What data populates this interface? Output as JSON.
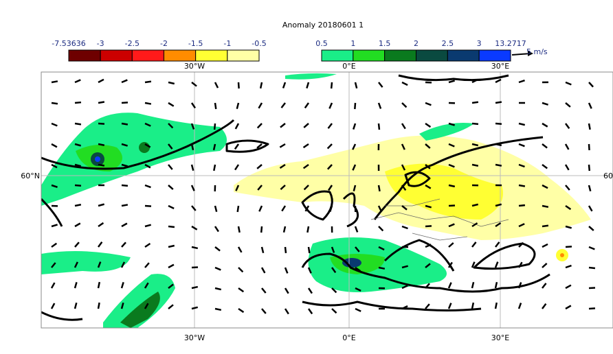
{
  "title": "Anomaly 20180601 1",
  "colorbar_negative": {
    "labels": [
      "-7.53636",
      "-3",
      "-2.5",
      "-2",
      "-1.5",
      "-1",
      "-0.5"
    ],
    "colors": [
      "#6e0000",
      "#cc0000",
      "#ff1a1a",
      "#ff8c00",
      "#ffff33",
      "#ffffa6"
    ]
  },
  "colorbar_positive": {
    "labels": [
      "0.5",
      "1",
      "1.5",
      "2",
      "2.5",
      "3",
      "13.2717"
    ],
    "colors": [
      "#1aee88",
      "#22dd22",
      "#0a7a1e",
      "#0a4a40",
      "#0a3a70",
      "#0a3aff"
    ]
  },
  "reference_vector": "5 m/s",
  "longitude_labels": [
    "30°W",
    "0°E",
    "30°E"
  ],
  "latitude_labels": {
    "left": "60°N",
    "right": "60"
  }
}
